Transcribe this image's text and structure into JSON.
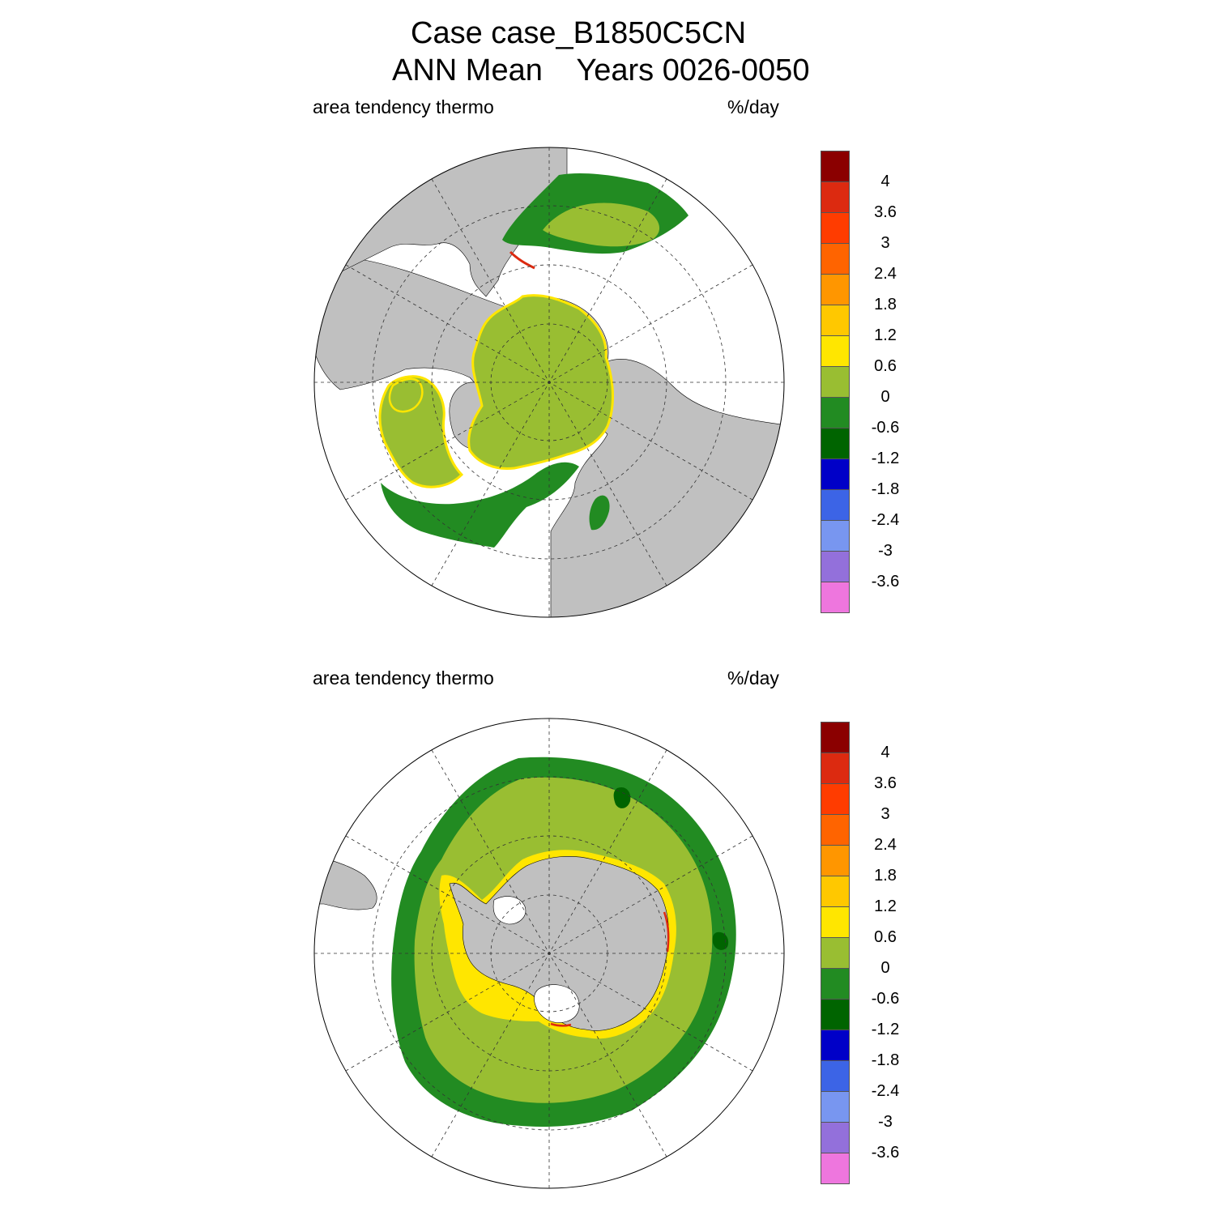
{
  "title": {
    "line1": "Case case_B1850C5CN",
    "line2": "ANN Mean    Years 0026-0050"
  },
  "panels": [
    {
      "id": "north",
      "variable_label": "area tendency thermo",
      "units_label": "%/day"
    },
    {
      "id": "south",
      "variable_label": "area tendency thermo",
      "units_label": "%/day"
    }
  ],
  "colorbar": {
    "labels": [
      "4",
      "3.6",
      "3",
      "2.4",
      "1.8",
      "1.2",
      "0.6",
      "0",
      "-0.6",
      "-1.2",
      "-1.8",
      "-2.4",
      "-3",
      "-3.6"
    ],
    "colors": [
      "#8b0000",
      "#dc2a10",
      "#ff3c00",
      "#ff6400",
      "#ff9600",
      "#ffc800",
      "#ffe600",
      "#99be32",
      "#228b22",
      "#006400",
      "#0000c8",
      "#3c64e6",
      "#7896f0",
      "#9370db",
      "#ee76de"
    ]
  },
  "map_colors": {
    "land": "#c0c0c0",
    "ocean": "#ffffff",
    "ice_near_zero": "#99be32",
    "ice_slight_negative": "#228b22",
    "ice_negative": "#006400",
    "edge_yellow": "#ffe600",
    "edge_orange": "#ff9600",
    "edge_red": "#dc2a10"
  }
}
